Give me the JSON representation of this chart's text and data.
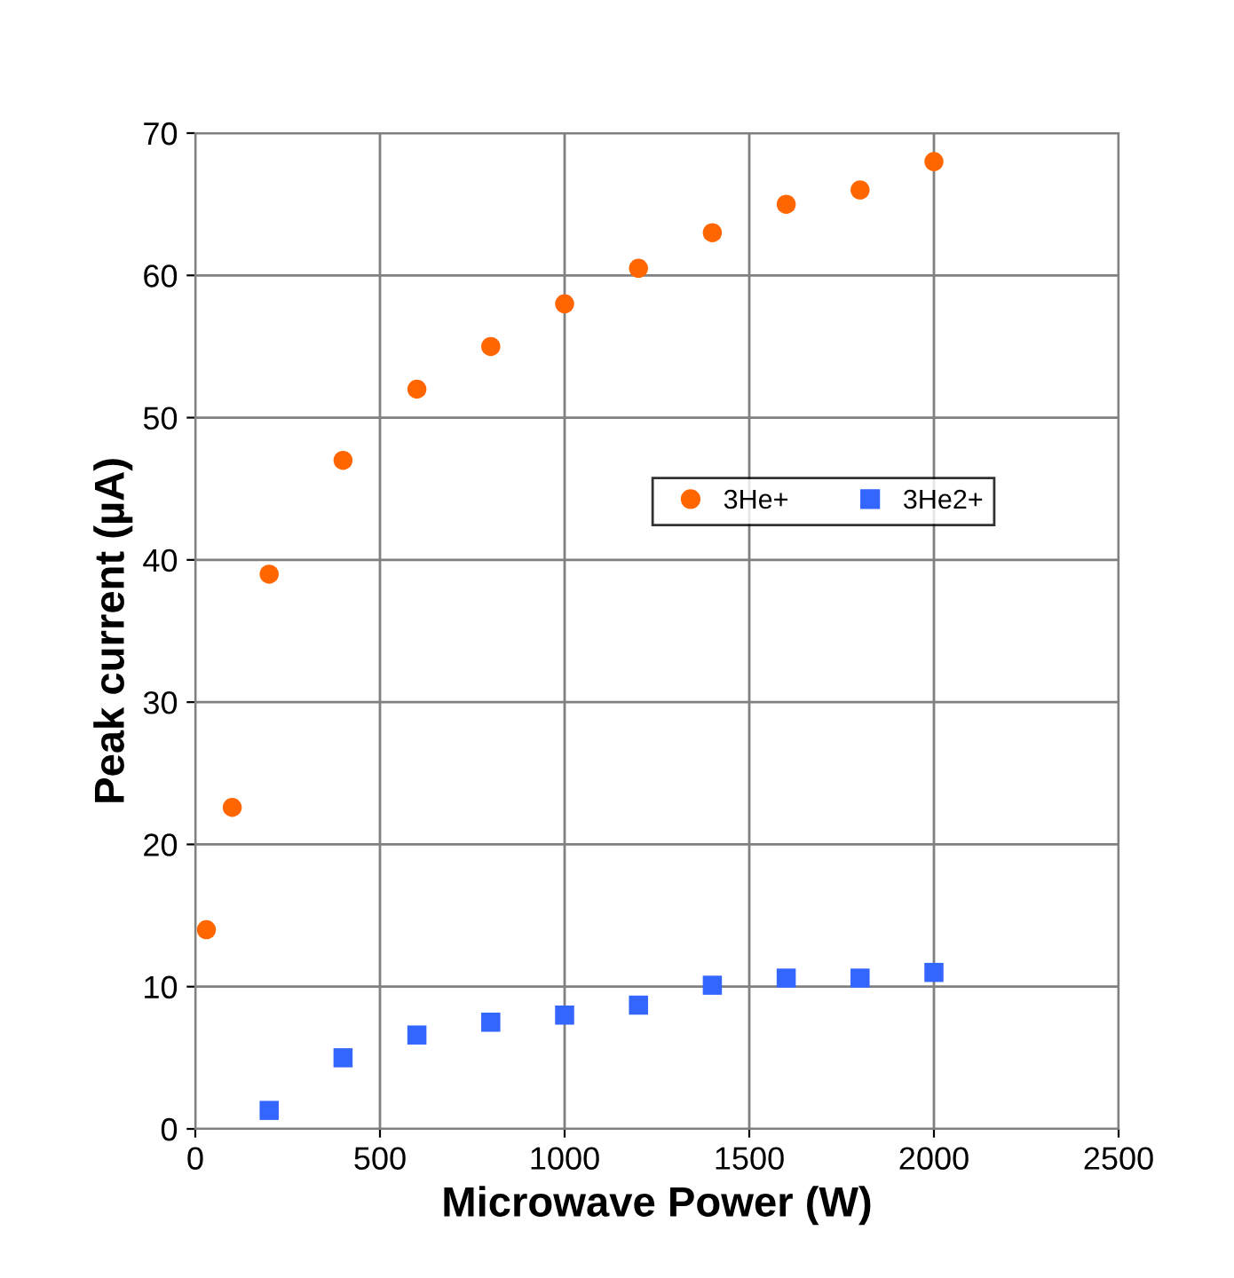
{
  "chart_data": {
    "type": "scatter",
    "xlabel": "Microwave Power (W)",
    "ylabel": "Peak current (µA)",
    "xlim": [
      0,
      2500
    ],
    "xticks": [
      0,
      500,
      1000,
      1500,
      2000,
      2500
    ],
    "ylim": [
      0,
      70
    ],
    "yticks": [
      0,
      10,
      20,
      30,
      40,
      50,
      60,
      70
    ],
    "grid": true,
    "legend": "right",
    "series": [
      {
        "name": "3He+",
        "color": "#ff6600",
        "marker": "circle",
        "x": [
          30,
          100,
          200,
          400,
          600,
          800,
          1000,
          1200,
          1400,
          1600,
          1800,
          2000
        ],
        "values": [
          14,
          22.6,
          39,
          47,
          52,
          55,
          58,
          60.5,
          63,
          65,
          66,
          68
        ]
      },
      {
        "name": "3He2+",
        "color": "#3366ff",
        "marker": "square",
        "x": [
          200,
          400,
          600,
          800,
          1000,
          1200,
          1400,
          1600,
          1800,
          2000
        ],
        "values": [
          1.3,
          5,
          6.6,
          7.5,
          8,
          8.7,
          10.1,
          10.6,
          10.6,
          11
        ]
      }
    ]
  }
}
